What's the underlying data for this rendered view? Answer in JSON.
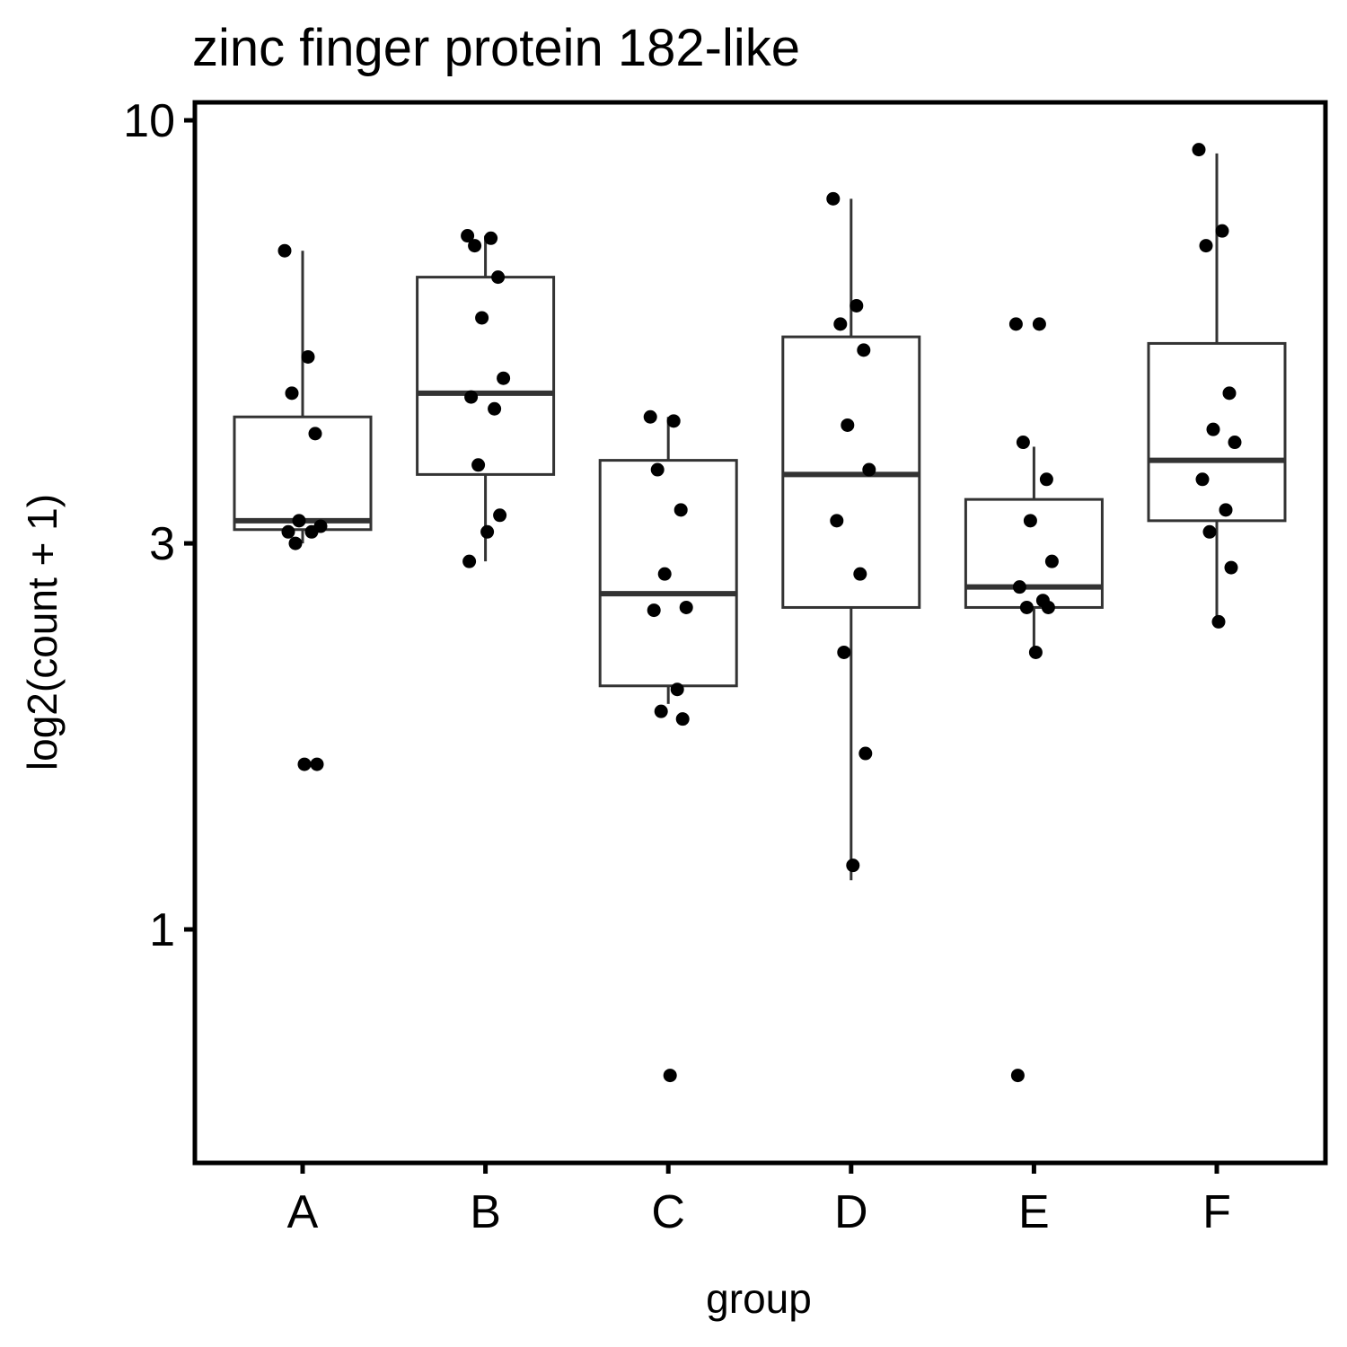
{
  "chart_data": {
    "type": "box",
    "title": "zinc finger protein 182-like",
    "xlabel": "group",
    "ylabel": "log2(count + 1)",
    "y_scale": "log10",
    "ylim": [
      0.56,
      10.5
    ],
    "y_ticks": [
      {
        "value": 1,
        "label": "1"
      },
      {
        "value": 3,
        "label": "3"
      },
      {
        "value": 10,
        "label": "10"
      }
    ],
    "grid": false,
    "categories": [
      "A",
      "B",
      "C",
      "D",
      "E",
      "F"
    ],
    "boxes": [
      {
        "group": "A",
        "whisker_low": 3.0,
        "q1": 3.12,
        "median": 3.2,
        "q3": 4.3,
        "whisker_high": 6.9
      },
      {
        "group": "B",
        "whisker_low": 2.85,
        "q1": 3.65,
        "median": 4.6,
        "q3": 6.4,
        "whisker_high": 7.2
      },
      {
        "group": "C",
        "whisker_low": 1.9,
        "q1": 2.0,
        "median": 2.6,
        "q3": 3.8,
        "whisker_high": 4.3
      },
      {
        "group": "D",
        "whisker_low": 1.15,
        "q1": 2.5,
        "median": 3.65,
        "q3": 5.4,
        "whisker_high": 8.0
      },
      {
        "group": "E",
        "whisker_low": 2.2,
        "q1": 2.5,
        "median": 2.65,
        "q3": 3.4,
        "whisker_high": 3.95
      },
      {
        "group": "F",
        "whisker_low": 2.4,
        "q1": 3.2,
        "median": 3.8,
        "q3": 5.3,
        "whisker_high": 9.1
      }
    ],
    "points": [
      {
        "group": "A",
        "values": [
          6.9,
          5.1,
          4.6,
          4.1,
          3.2,
          3.15,
          3.1,
          3.1,
          3.0,
          1.6,
          1.6
        ]
      },
      {
        "group": "B",
        "values": [
          7.2,
          7.15,
          7.0,
          6.4,
          5.7,
          4.8,
          4.55,
          4.4,
          3.75,
          3.25,
          3.1,
          2.85
        ]
      },
      {
        "group": "C",
        "values": [
          4.3,
          4.25,
          3.7,
          3.3,
          2.75,
          2.5,
          2.48,
          1.98,
          1.86,
          1.82,
          0.66
        ]
      },
      {
        "group": "D",
        "values": [
          8.0,
          5.9,
          5.6,
          5.2,
          4.2,
          3.7,
          3.2,
          2.75,
          2.2,
          1.65,
          1.2
        ]
      },
      {
        "group": "E",
        "values": [
          5.6,
          5.6,
          4.0,
          3.6,
          3.2,
          2.85,
          2.65,
          2.55,
          2.5,
          2.5,
          2.2,
          0.66
        ]
      },
      {
        "group": "F",
        "values": [
          9.2,
          7.3,
          7.0,
          4.6,
          4.15,
          4.0,
          3.6,
          3.3,
          3.1,
          2.8,
          2.4
        ]
      }
    ],
    "colors": {
      "box_stroke": "#333333",
      "point": "#000000",
      "axis": "#000000",
      "background": "#ffffff"
    }
  }
}
